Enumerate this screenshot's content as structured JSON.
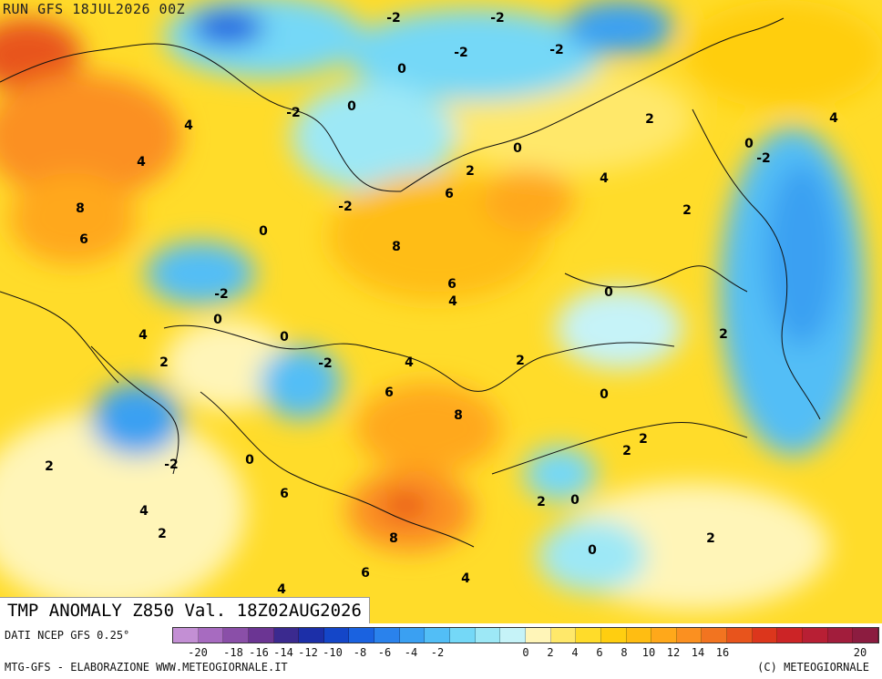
{
  "header": {
    "run": "RUN GFS 18JUL2026 00Z"
  },
  "title": "TMP ANOMALY Z850 Val. 18Z02AUG2026",
  "footer": {
    "dati": "DATI NCEP GFS 0.25°",
    "credit": "MTG-GFS - ELABORAZIONE WWW.METEOGIORNALE.IT",
    "copyright": "(C) METEOGIORNALE"
  },
  "colorbar": {
    "colors": [
      "#c38fd4",
      "#a76bc0",
      "#8a4fa8",
      "#6b3593",
      "#3b2a8f",
      "#1c2fa8",
      "#1446c8",
      "#1a62e0",
      "#2a82ec",
      "#3aa0f2",
      "#52bef6",
      "#74d8f7",
      "#9de8f6",
      "#c6f3f8",
      "#fff5b8",
      "#ffe86a",
      "#ffdc2a",
      "#ffce10",
      "#ffbd12",
      "#ffa81a",
      "#fb9020",
      "#f27420",
      "#e8541c",
      "#dc361c",
      "#cc2426",
      "#b81f34",
      "#a21d3c",
      "#8c1c40"
    ],
    "tick_labels": [
      "-20",
      "-18",
      "-16",
      "-14",
      "-12",
      "-10",
      "-8",
      "-6",
      "-4",
      "-2",
      "0",
      "2",
      "4",
      "6",
      "8",
      "10",
      "12",
      "14",
      "16",
      "20"
    ]
  },
  "contour_labels": [
    "-2",
    "-2",
    "0",
    "-2",
    "-2",
    "0",
    "4",
    "2",
    "-2",
    "4",
    "0",
    "4",
    "8",
    "4",
    "6",
    "2",
    "0",
    "-2",
    "2",
    "6",
    "-2",
    "0",
    "8",
    "6",
    "-2",
    "0",
    "4",
    "0",
    "2",
    "4",
    "-2",
    "0",
    "4",
    "2",
    "2",
    "0",
    "6",
    "8",
    "2",
    "-2",
    "0",
    "2",
    "2",
    "6",
    "2",
    "0",
    "4",
    "2",
    "8",
    "2",
    "0",
    "6",
    "4",
    "4"
  ]
}
